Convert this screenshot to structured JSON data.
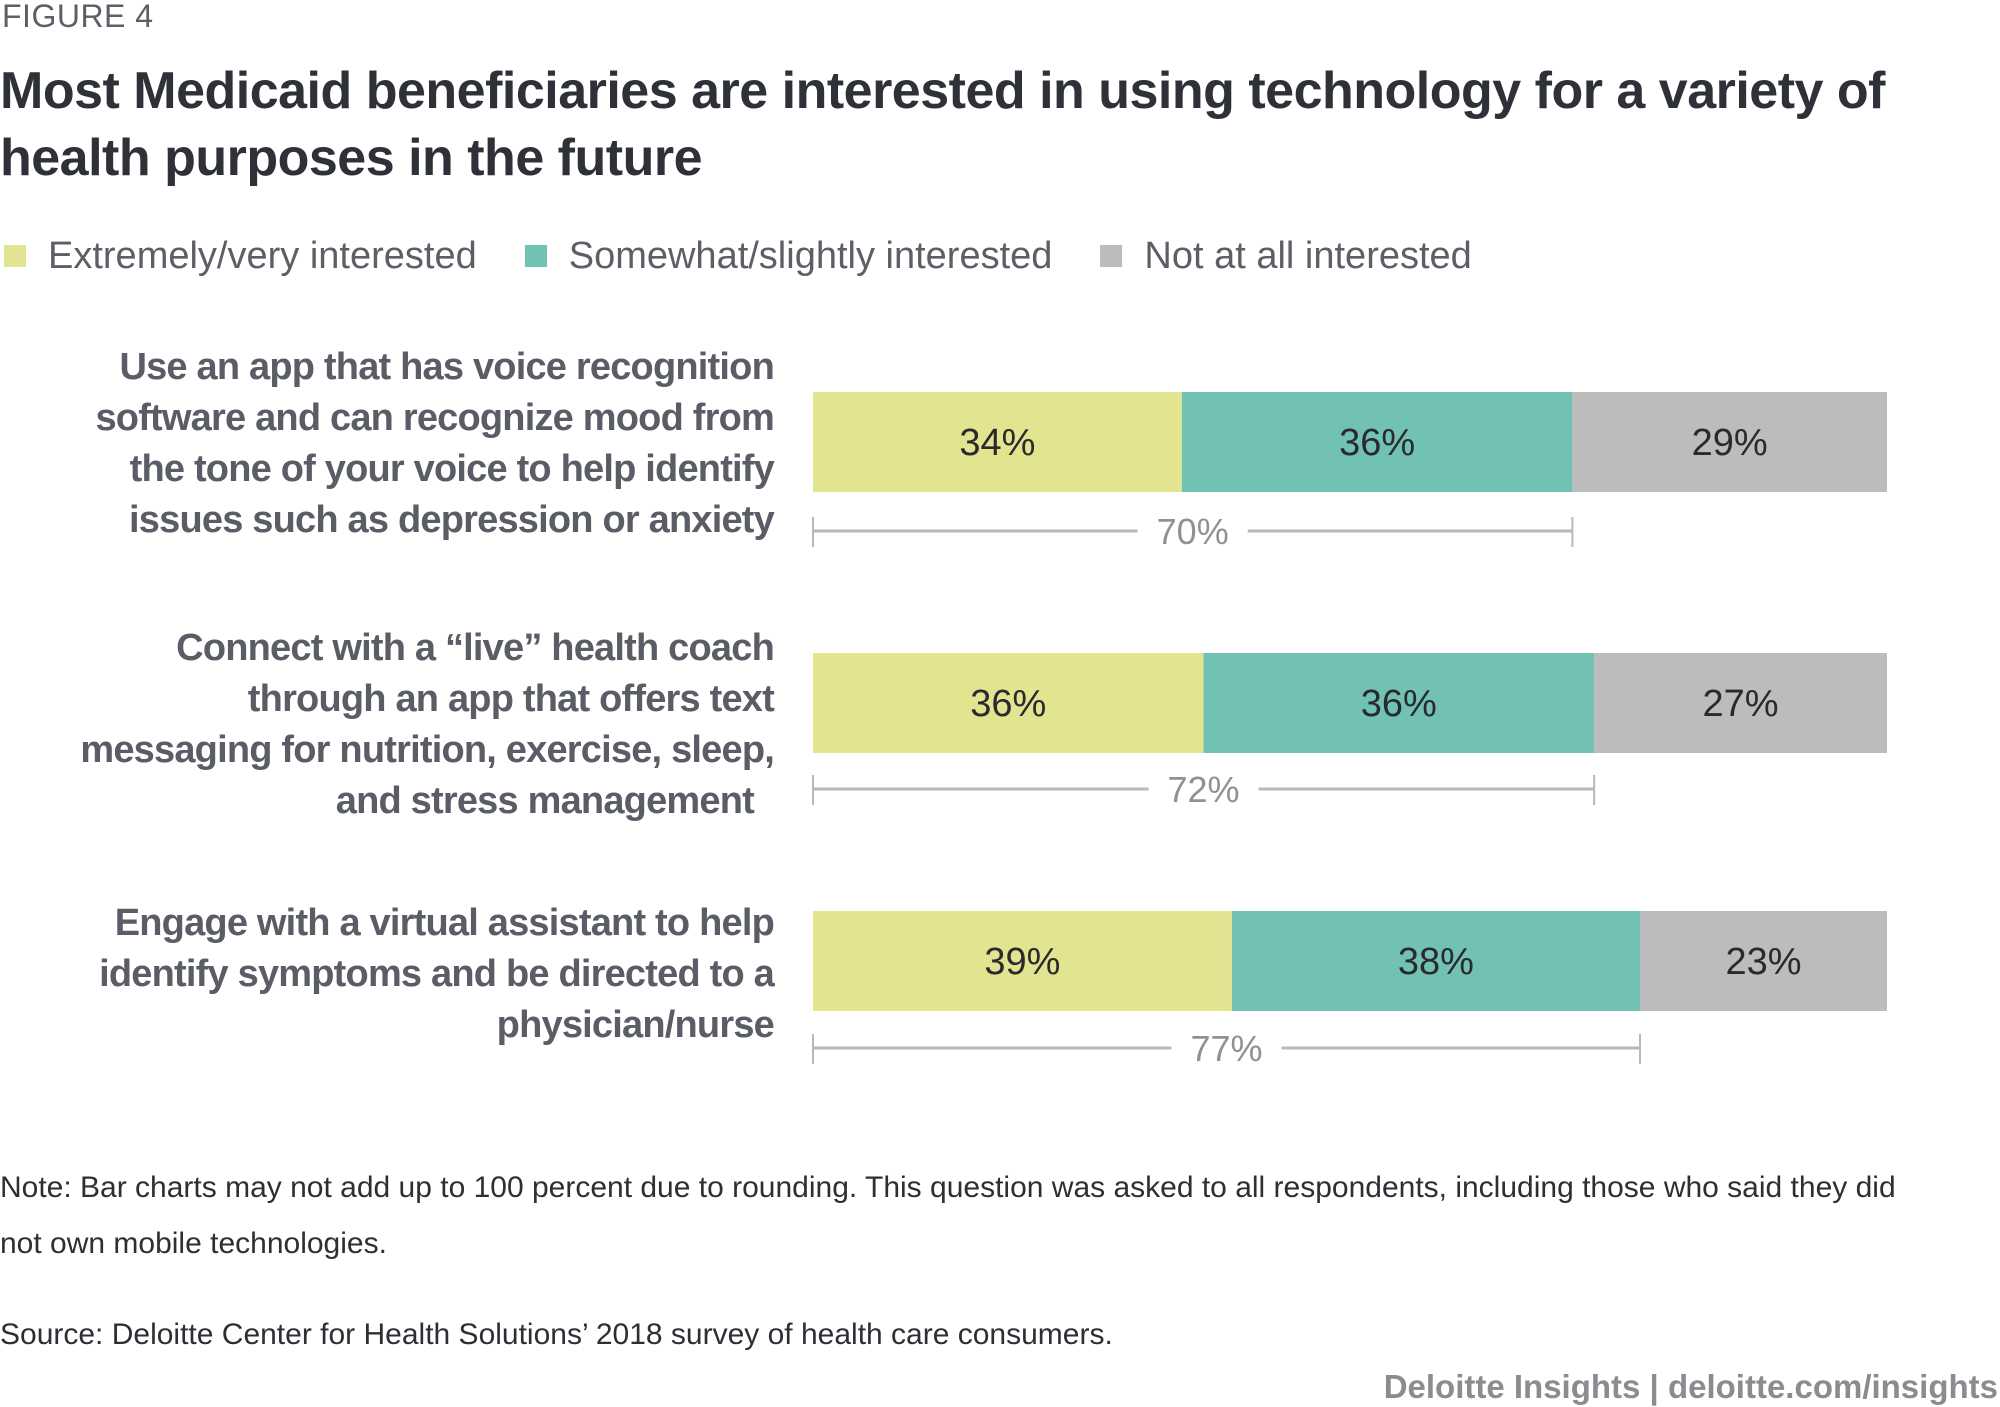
{
  "figure_label": "FIGURE 4",
  "footer": {
    "note": "Note: Bar charts may not add up to 100 percent due to rounding. This question was asked to all respondents, including those who said they did not own mobile technologies.",
    "source": "Source: Deloitte Center for Health Solutions’ 2018 survey of health care consumers.",
    "brand": "Deloitte Insights | deloitte.com/insights"
  },
  "chart_data": {
    "type": "bar",
    "orientation": "horizontal",
    "stacked": true,
    "title": "Most Medicaid beneficiaries are interested in using technology for a variety of health purposes in the future",
    "xlabel": "",
    "ylabel": "",
    "legend_position": "top-left",
    "grid": false,
    "categories": [
      "Use an app that has voice recognition software and can recognize mood from the tone of your voice to help identify issues such as depression or anxiety",
      "Connect with a “live” health coach through an app that offers text messaging for nutrition, exercise, sleep, and stress management",
      "Engage with a virtual assistant to help identify symptoms and be directed to a physician/nurse"
    ],
    "category_lines": [
      [
        "Use an app that has voice recognition",
        "software and can recognize mood from",
        "the tone of your voice to help identify",
        "issues such as depression or anxiety"
      ],
      [
        "Connect with a “live” health coach",
        "through an app that offers text",
        "messaging for nutrition, exercise, sleep,",
        "and stress management"
      ],
      [
        "Engage with a virtual assistant to help",
        "identify symptoms and be directed to a",
        "physician/nurse"
      ]
    ],
    "series": [
      {
        "name": "Extremely/very interested",
        "color": "#e3e48f",
        "values": [
          34,
          36,
          39
        ],
        "labels": [
          "34%",
          "36%",
          "39%"
        ]
      },
      {
        "name": "Somewhat/slightly interested",
        "color": "#71c2b4",
        "values": [
          36,
          36,
          38
        ],
        "labels": [
          "36%",
          "36%",
          "38%"
        ]
      },
      {
        "name": "Not at all interested",
        "color": "#bbbcbb",
        "values": [
          29,
          27,
          23
        ],
        "labels": [
          "29%",
          "27%",
          "23%"
        ]
      }
    ],
    "totals": {
      "description": "Extremely/very + Somewhat/slightly interested",
      "values": [
        70,
        72,
        77
      ],
      "labels": [
        "70%",
        "72%",
        "77%"
      ]
    },
    "xlim": [
      0,
      100
    ]
  }
}
